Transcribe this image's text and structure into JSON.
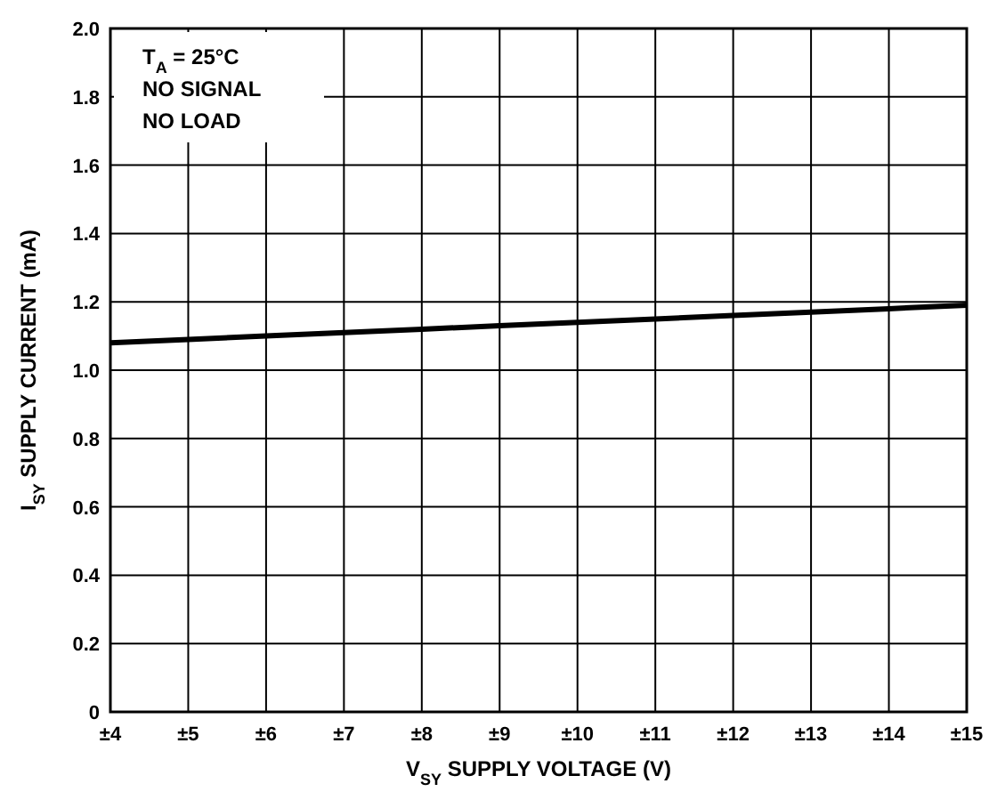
{
  "chart_data": {
    "type": "line",
    "xlabel": "V$_{SY}$ SUPPLY VOLTAGE (V)",
    "ylabel": "I$_{SY}$ SUPPLY CURRENT (mA)",
    "annotations": [
      "T$_{A}$ = 25°C",
      "NO SIGNAL",
      "NO LOAD"
    ],
    "x": [
      4,
      5,
      6,
      7,
      8,
      9,
      10,
      11,
      12,
      13,
      14,
      15
    ],
    "series": [
      {
        "color": "#000000",
        "values": [
          1.08,
          1.09,
          1.1,
          1.11,
          1.12,
          1.13,
          1.14,
          1.15,
          1.16,
          1.17,
          1.18,
          1.19
        ]
      }
    ],
    "xlim": [
      4,
      15
    ],
    "xticks": [
      {
        "value": 4,
        "label": "±4"
      },
      {
        "value": 5,
        "label": "±5"
      },
      {
        "value": 6,
        "label": "±6"
      },
      {
        "value": 7,
        "label": "±7"
      },
      {
        "value": 8,
        "label": "±8"
      },
      {
        "value": 9,
        "label": "±9"
      },
      {
        "value": 10,
        "label": "±10"
      },
      {
        "value": 11,
        "label": "±11"
      },
      {
        "value": 12,
        "label": "±12"
      },
      {
        "value": 13,
        "label": "±13"
      },
      {
        "value": 14,
        "label": "±14"
      },
      {
        "value": 15,
        "label": "±15"
      }
    ],
    "ylim": [
      0,
      2
    ],
    "yticks": [
      0,
      {
        "value": 0.2,
        "label": "0.2"
      },
      {
        "value": 0.4,
        "label": "0.4"
      },
      {
        "value": 0.6,
        "label": "0.6"
      },
      {
        "value": 0.8,
        "label": "0.8"
      },
      {
        "value": 1,
        "label": "1.0"
      },
      {
        "value": 1.2,
        "label": "1.2"
      },
      {
        "value": 1.4,
        "label": "1.4"
      },
      {
        "value": 1.6,
        "label": "1.6"
      },
      {
        "value": 1.8,
        "label": "1.8"
      },
      {
        "value": 2,
        "label": "2.0"
      }
    ],
    "grid": true,
    "line_style": "solid",
    "marker": "none"
  }
}
